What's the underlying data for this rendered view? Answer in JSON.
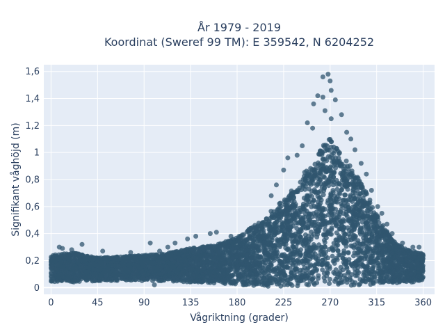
{
  "chart_data": {
    "type": "scatter",
    "title_lines": [
      "År 1979 - 2019",
      "Koordinat (Sweref 99 TM): E 359542, N 6204252"
    ],
    "xlabel": "Vågriktning (grader)",
    "ylabel": "Signifikant våghöjd (m)",
    "xlim": [
      -7,
      371
    ],
    "ylim": [
      -0.05,
      1.65
    ],
    "xticks": [
      0,
      45,
      90,
      135,
      180,
      225,
      270,
      315,
      360
    ],
    "xtick_labels": [
      "0",
      "45",
      "90",
      "135",
      "180",
      "225",
      "270",
      "315",
      "360"
    ],
    "yticks": [
      0,
      0.2,
      0.4,
      0.6,
      0.8,
      1.0,
      1.2,
      1.4,
      1.6
    ],
    "ytick_labels": [
      "0",
      "0,2",
      "0,4",
      "0,6",
      "0,8",
      "1",
      "1,2",
      "1,4",
      "1,6"
    ],
    "grid": true,
    "marker_color": "#30566f",
    "plot_bg": "#e5ecf6",
    "envelope": {
      "direction": [
        0,
        20,
        45,
        70,
        90,
        110,
        135,
        160,
        180,
        195,
        210,
        225,
        240,
        255,
        265,
        270,
        280,
        290,
        300,
        315,
        330,
        345,
        360
      ],
      "lower": [
        0.04,
        0.04,
        0.05,
        0.05,
        0.05,
        0.05,
        0.04,
        0.03,
        0.02,
        0.01,
        0.01,
        0.01,
        0.01,
        0.01,
        0.01,
        0.01,
        0.01,
        0.01,
        0.01,
        0.02,
        0.03,
        0.04,
        0.04
      ],
      "upper": [
        0.24,
        0.26,
        0.22,
        0.23,
        0.24,
        0.25,
        0.29,
        0.32,
        0.37,
        0.45,
        0.55,
        0.65,
        0.8,
        0.95,
        1.08,
        1.1,
        1.0,
        0.9,
        0.78,
        0.55,
        0.35,
        0.28,
        0.25
      ]
    },
    "outliers": [
      {
        "x": 263,
        "y": 1.56
      },
      {
        "x": 268,
        "y": 1.58
      },
      {
        "x": 270,
        "y": 1.53
      },
      {
        "x": 271,
        "y": 1.46
      },
      {
        "x": 258,
        "y": 1.42
      },
      {
        "x": 263,
        "y": 1.41
      },
      {
        "x": 275,
        "y": 1.39
      },
      {
        "x": 254,
        "y": 1.36
      },
      {
        "x": 265,
        "y": 1.31
      },
      {
        "x": 281,
        "y": 1.28
      },
      {
        "x": 271,
        "y": 1.25
      },
      {
        "x": 248,
        "y": 1.22
      },
      {
        "x": 253,
        "y": 1.18
      },
      {
        "x": 286,
        "y": 1.15
      },
      {
        "x": 290,
        "y": 1.1
      },
      {
        "x": 243,
        "y": 1.05
      },
      {
        "x": 238,
        "y": 0.98
      },
      {
        "x": 294,
        "y": 1.02
      },
      {
        "x": 229,
        "y": 0.96
      },
      {
        "x": 300,
        "y": 0.92
      },
      {
        "x": 225,
        "y": 0.87
      },
      {
        "x": 305,
        "y": 0.84
      },
      {
        "x": 218,
        "y": 0.76
      },
      {
        "x": 310,
        "y": 0.72
      },
      {
        "x": 213,
        "y": 0.68
      },
      {
        "x": 316,
        "y": 0.6
      },
      {
        "x": 320,
        "y": 0.55
      },
      {
        "x": 325,
        "y": 0.47
      },
      {
        "x": 330,
        "y": 0.4
      },
      {
        "x": 160,
        "y": 0.41
      },
      {
        "x": 154,
        "y": 0.4
      },
      {
        "x": 140,
        "y": 0.38
      },
      {
        "x": 132,
        "y": 0.36
      },
      {
        "x": 120,
        "y": 0.33
      },
      {
        "x": 96,
        "y": 0.33
      },
      {
        "x": 30,
        "y": 0.32
      },
      {
        "x": 8,
        "y": 0.3
      },
      {
        "x": 11,
        "y": 0.29
      },
      {
        "x": 20,
        "y": 0.28
      },
      {
        "x": 50,
        "y": 0.27
      },
      {
        "x": 77,
        "y": 0.26
      },
      {
        "x": 105,
        "y": 0.27
      },
      {
        "x": 113,
        "y": 0.3
      },
      {
        "x": 174,
        "y": 0.38
      },
      {
        "x": 340,
        "y": 0.33
      },
      {
        "x": 350,
        "y": 0.3
      },
      {
        "x": 356,
        "y": 0.3
      },
      {
        "x": 293,
        "y": 0.02
      },
      {
        "x": 210,
        "y": 0.01
      },
      {
        "x": 100,
        "y": 0.02
      }
    ]
  }
}
